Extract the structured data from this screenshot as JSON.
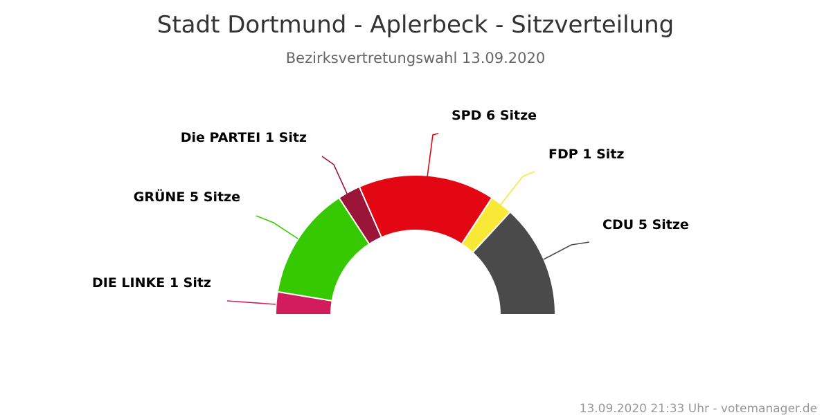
{
  "chart_data": {
    "type": "pie",
    "variant": "parliament-semicircle",
    "title": "Stadt Dortmund - Aplerbeck - Sitzverteilung",
    "subtitle": "Bezirksvertretungswahl 13.09.2020",
    "series": [
      {
        "name": "DIE LINKE",
        "value": 1,
        "label": "DIE LINKE 1 Sitz",
        "color": "#d21d5c"
      },
      {
        "name": "GRÜNE",
        "value": 5,
        "label": "GRÜNE 5 Sitze",
        "color": "#36c800"
      },
      {
        "name": "Die PARTEI",
        "value": 1,
        "label": "Die PARTEI 1 Sitz",
        "color": "#9a1538"
      },
      {
        "name": "SPD",
        "value": 6,
        "label": "SPD 6 Sitze",
        "color": "#e30613"
      },
      {
        "name": "FDP",
        "value": 1,
        "label": "FDP 1 Sitz",
        "color": "#f8e936"
      },
      {
        "name": "CDU",
        "value": 5,
        "label": "CDU 5 Sitze",
        "color": "#4a4a4a"
      }
    ],
    "total_seats": 19,
    "credits": "13.09.2020 21:33 Uhr - votemanager.de"
  }
}
